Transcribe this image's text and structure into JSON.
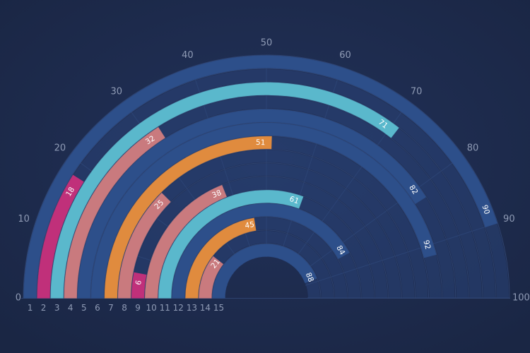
{
  "chart_data": {
    "type": "bar",
    "subtype": "radial-semicircle",
    "title": "",
    "xlabel": "",
    "ylabel": "",
    "angle_range": [
      0,
      100
    ],
    "angle_ticks": [
      "0",
      "10",
      "20",
      "30",
      "40",
      "50",
      "60",
      "70",
      "80",
      "90",
      "100"
    ],
    "categories": [
      "1",
      "2",
      "3",
      "4",
      "5",
      "6",
      "7",
      "8",
      "9",
      "10",
      "11",
      "12",
      "13",
      "14",
      "15"
    ],
    "values": [
      90,
      18,
      71,
      32,
      82,
      92,
      51,
      25,
      6,
      38,
      61,
      84,
      45,
      21,
      88
    ],
    "value_labels": [
      "90",
      "18",
      "71",
      "32",
      "82",
      "92",
      "51",
      "25",
      "6",
      "38",
      "61",
      "84",
      "45",
      "21",
      "88"
    ],
    "bar_colors": [
      "#2d4f8a",
      "#c0307a",
      "#5ab8cc",
      "#c97a7e",
      "#2d4f8a",
      "#2d4f8a",
      "#e08b3e",
      "#c97a7e",
      "#c0307a",
      "#c97a7e",
      "#5ab8cc",
      "#2d4f8a",
      "#e08b3e",
      "#c97a7e",
      "#2d4f8a"
    ],
    "track_color": "#2a4478",
    "background": "#1e2c4c",
    "grid": true
  }
}
